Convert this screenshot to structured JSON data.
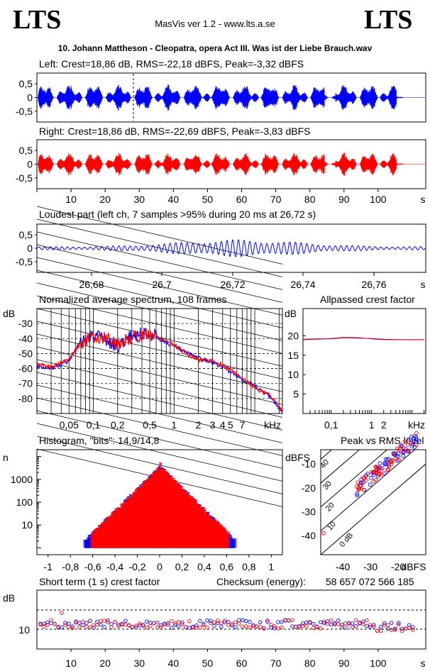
{
  "header": {
    "logo_left": "LTS",
    "logo_right": "LTS",
    "app_title": "MasVis ver 1.2 - www.lts.a.se",
    "file_name": "10. Johann Mattheson - Cleopatra, opera Act III. Was ist der Liebe Brauch.wav"
  },
  "colors": {
    "left": "#0000ff",
    "right": "#ff0000"
  },
  "chart_data": [
    {
      "type": "line",
      "title": "Left: Crest=18,86 dB, RMS=-22,18 dBFS, Peak=-3,32 dBFS",
      "channel": "left",
      "yticks": [
        "0,5",
        "0",
        "-0,5"
      ],
      "ylim": [
        -1,
        1
      ],
      "xlim": [
        0,
        108
      ],
      "marker_x": 26.72
    },
    {
      "type": "line",
      "title": "Right: Crest=18,86 dB, RMS=-22,69 dBFS, Peak=-3,83 dBFS",
      "channel": "right",
      "yticks": [
        "0,5",
        "0",
        "-0,5"
      ],
      "ylim": [
        -1,
        1
      ],
      "xticks": [
        "10",
        "20",
        "30",
        "40",
        "50",
        "60",
        "70",
        "80",
        "90",
        "100"
      ],
      "xunit": "s"
    },
    {
      "type": "line",
      "title": "Loudest part (left  ch, 7 samples >95% during 20 ms at 26,72 s)",
      "yticks": [
        "0,5",
        "0",
        "-0,5"
      ],
      "xticks": [
        "26,68",
        "26,7",
        "26,72",
        "26,74",
        "26,76"
      ],
      "xunit": "s",
      "xlim": [
        26.665,
        26.765
      ]
    },
    {
      "type": "line",
      "title": "Normalized average spectrum, 108 frames",
      "ylabel": "dB",
      "yticks": [
        "-30",
        "-40",
        "-50",
        "-60",
        "-70",
        "-80"
      ],
      "xticks": [
        "0,05",
        "0,1",
        "0,2",
        "0,5",
        "1",
        "2",
        "3",
        "4",
        "5",
        "7"
      ],
      "xunit": "kHz",
      "xlim": [
        0.02,
        22
      ],
      "ylim": [
        -90,
        -20
      ],
      "series": [
        {
          "x": [
            0.02,
            0.03,
            0.05,
            0.07,
            0.1,
            0.15,
            0.2,
            0.3,
            0.5,
            0.7,
            1,
            1.5,
            2,
            3,
            4,
            5,
            7,
            10,
            15,
            22
          ],
          "values": [
            -58,
            -60,
            -55,
            -42,
            -38,
            -42,
            -45,
            -38,
            -36,
            -41,
            -45,
            -50,
            -53,
            -56,
            -59,
            -62,
            -67,
            -72,
            -78,
            -89
          ]
        },
        {
          "x": [
            0.02,
            0.03,
            0.05,
            0.07,
            0.1,
            0.15,
            0.2,
            0.3,
            0.5,
            0.7,
            1,
            1.5,
            2,
            3,
            4,
            5,
            7,
            10,
            15,
            22
          ],
          "values": [
            -57,
            -59,
            -54,
            -43,
            -39,
            -40,
            -44,
            -39,
            -37,
            -40,
            -44,
            -51,
            -54,
            -55,
            -58,
            -61,
            -66,
            -73,
            -77,
            -88
          ]
        }
      ]
    },
    {
      "type": "line",
      "title": "Allpassed crest factor",
      "ylabel": "dB",
      "yticks": [
        "20",
        "15",
        "10",
        "5"
      ],
      "xticks": [
        "0,1",
        "1",
        "2"
      ],
      "xunit": "kHz",
      "ylim": [
        0,
        27
      ],
      "series": [
        {
          "x": [
            0.02,
            0.05,
            0.1,
            0.2,
            0.5,
            1,
            2,
            5,
            20
          ],
          "values": [
            19.1,
            19.2,
            19.2,
            19.5,
            19.4,
            19.3,
            19.1,
            19.0,
            19.0
          ]
        },
        {
          "x": [
            0.02,
            0.05,
            0.1,
            0.2,
            0.5,
            1,
            2,
            5,
            20
          ],
          "values": [
            19.0,
            19.1,
            19.3,
            19.6,
            19.5,
            19.2,
            19.0,
            19.0,
            19.0
          ]
        }
      ]
    },
    {
      "type": "line",
      "title": "Histogram, \"bits\": 14,9/14,8",
      "ylabel": "n",
      "yticks": [
        "1000",
        "100",
        "10"
      ],
      "xticks": [
        "-1",
        "-0,8",
        "-0,6",
        "-0,4",
        "-0,2",
        "0",
        "0,2",
        "0,4",
        "0,6",
        "0,8",
        "1"
      ],
      "xlim": [
        -1.1,
        1.1
      ]
    },
    {
      "type": "scatter",
      "title": "Peak vs RMS level",
      "ylabel": "dBFS",
      "yticks": [
        "-10",
        "-20",
        "-30",
        "-40"
      ],
      "xticks": [
        "-40",
        "-30",
        "-20"
      ],
      "xunit": "dBFS",
      "diag_labels": [
        "40",
        "30",
        "20",
        "10",
        "0 dB"
      ],
      "xlim": [
        -48,
        -10
      ],
      "ylim": [
        -48,
        -4
      ]
    },
    {
      "type": "scatter",
      "title": "Short term (1 s) crest factor",
      "ylabel": "dB",
      "yticks": [
        "10"
      ],
      "xticks": [
        "10",
        "20",
        "30",
        "40",
        "50",
        "60",
        "70",
        "80",
        "90",
        "100"
      ],
      "xunit": "s",
      "checksum_label": "Checksum (energy):",
      "checksum_value": "58 657 072 566 185"
    }
  ]
}
